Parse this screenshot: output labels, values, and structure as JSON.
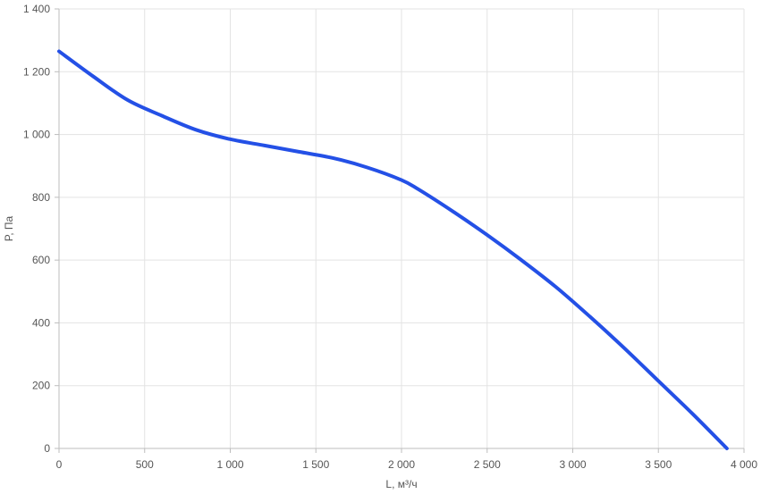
{
  "chart_data": {
    "type": "line",
    "title": "",
    "xlabel": "L, м³/ч",
    "ylabel": "P, Па",
    "xlim": [
      0,
      4000
    ],
    "ylim": [
      0,
      1400
    ],
    "x_ticks": [
      0,
      500,
      1000,
      1500,
      2000,
      2500,
      3000,
      3500,
      4000
    ],
    "x_tick_labels": [
      "0",
      "500",
      "1 000",
      "1 500",
      "2 000",
      "2 500",
      "3 000",
      "3 500",
      "4 000"
    ],
    "y_ticks": [
      0,
      200,
      400,
      600,
      800,
      1000,
      1200,
      1400
    ],
    "y_tick_labels": [
      "0",
      "200",
      "400",
      "600",
      "800",
      "1 000",
      "1 200",
      "1 400"
    ],
    "grid": true,
    "legend": "none",
    "series": [
      {
        "color": "#2450e6",
        "x": [
          0,
          200,
          400,
          600,
          800,
          1000,
          1200,
          1400,
          1600,
          1800,
          2000,
          2100,
          2300,
          2500,
          2700,
          2900,
          3100,
          3300,
          3500,
          3700,
          3900
        ],
        "y": [
          1265,
          1185,
          1110,
          1060,
          1015,
          985,
          965,
          945,
          925,
          895,
          855,
          825,
          755,
          680,
          600,
          515,
          420,
          320,
          215,
          110,
          0
        ]
      }
    ]
  }
}
